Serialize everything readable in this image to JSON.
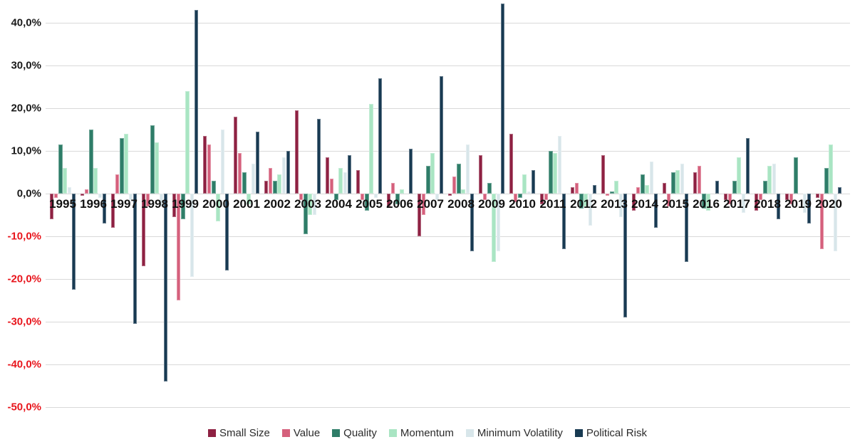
{
  "chart_data": {
    "type": "bar",
    "title": "",
    "categories": [
      "1995",
      "1996",
      "1997",
      "1998",
      "1999",
      "2000",
      "2001",
      "2002",
      "2003",
      "2004",
      "2005",
      "2006",
      "2007",
      "2008",
      "2009",
      "2010",
      "2011",
      "2012",
      "2013",
      "2014",
      "2015",
      "2016",
      "2017",
      "2018",
      "2019",
      "2020"
    ],
    "series": [
      {
        "name": "Small Size",
        "color": "#8E2142",
        "values": [
          -6,
          -0.5,
          -8,
          -17,
          -5.5,
          13.5,
          18,
          3,
          19.5,
          8.5,
          5.5,
          -3,
          -10,
          -0.5,
          9,
          14,
          -2.5,
          1.5,
          9,
          -4,
          2.5,
          5,
          -1.5,
          -4,
          -1.5,
          -1
        ]
      },
      {
        "name": "Value",
        "color": "#D5607C",
        "values": [
          -1,
          1,
          4.5,
          -3,
          -25,
          11.5,
          9.5,
          6,
          -1.5,
          3.5,
          -1.5,
          2.5,
          -5,
          4,
          -1.5,
          -2,
          -1.5,
          2.5,
          -0.5,
          1.5,
          -3,
          6.5,
          -2.5,
          -1.5,
          -2.5,
          -13
        ]
      },
      {
        "name": "Quality",
        "color": "#2E7D68",
        "values": [
          11.5,
          15,
          13,
          16,
          -6,
          3,
          5,
          3,
          -9.5,
          -1.5,
          -4,
          -2.5,
          6.5,
          7,
          2.5,
          -1,
          10,
          -3.5,
          0.5,
          4.5,
          5,
          -3.5,
          3,
          3,
          8.5,
          6
        ]
      },
      {
        "name": "Momentum",
        "color": "#A9E5C3",
        "values": [
          6,
          6,
          14,
          12,
          24,
          -6.5,
          -2.5,
          4.5,
          -5,
          6,
          21,
          1,
          9.5,
          1,
          -16,
          4.5,
          9.5,
          -3,
          3,
          2,
          5.5,
          -4,
          8.5,
          6.5,
          0,
          11.5
        ]
      },
      {
        "name": "Minimum Volatility",
        "color": "#D8E6EA",
        "values": [
          1.5,
          -1,
          -1.5,
          -3,
          -19.5,
          15,
          7,
          8.5,
          -5,
          5,
          -1,
          0,
          -1.5,
          11.5,
          -13.5,
          0.5,
          13.5,
          -7.5,
          -5.5,
          7.5,
          7,
          0,
          -4.5,
          7,
          -4.5,
          -13.5
        ]
      },
      {
        "name": "Political Risk",
        "color": "#183A52",
        "values": [
          -22.5,
          -7,
          -30.5,
          -44,
          43,
          -18,
          14.5,
          10,
          17.5,
          9,
          27,
          10.5,
          27.5,
          -13.5,
          44.5,
          5.5,
          -13,
          2,
          -29,
          -8,
          -16,
          3,
          13,
          -6,
          -7,
          1.5
        ]
      }
    ],
    "y_axis": {
      "min": -50,
      "max": 40,
      "step": 10,
      "tick_format": "european-percent-one-decimal",
      "tick_labels": [
        "40,0%",
        "30,0%",
        "20,0%",
        "10,0%",
        "0,0%",
        "-10,0%",
        "-20,0%",
        "-30,0%",
        "-40,0%",
        "-50,0%"
      ],
      "positive_label_color": "#1a1a1a",
      "negative_label_color": "#e8161d"
    },
    "grid": true,
    "gridline_color": "#d9d9d9",
    "legend_position": "bottom"
  }
}
